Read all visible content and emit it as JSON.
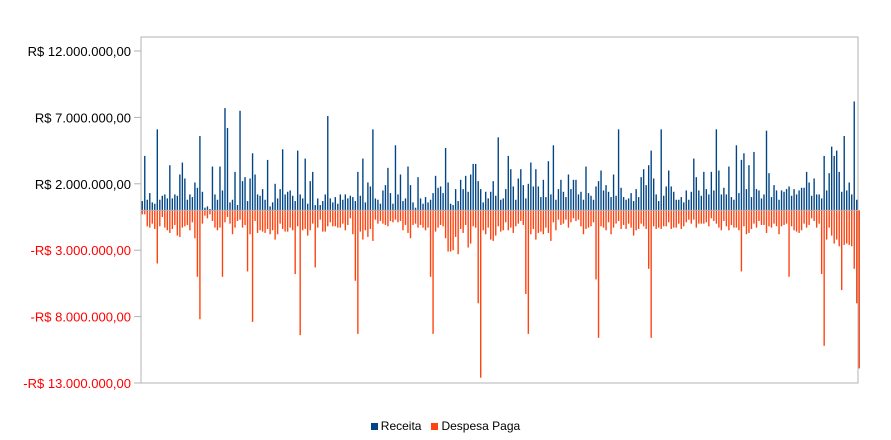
{
  "chart_data": {
    "type": "bar",
    "title": "",
    "xlabel": "",
    "ylabel": "",
    "ylim": [
      -13000000,
      12600000
    ],
    "y_ticks": [
      {
        "value": 12000000,
        "label": "R$ 12.000.000,00"
      },
      {
        "value": 7000000,
        "label": "R$ 7.000.000,00"
      },
      {
        "value": 2000000,
        "label": "R$ 2.000.000,00"
      },
      {
        "value": -3000000,
        "label": "-R$ 3.000.000,00"
      },
      {
        "value": -8000000,
        "label": "-R$ 8.000.000,00"
      },
      {
        "value": -13000000,
        "label": "-R$ 13.000.000,00"
      }
    ],
    "colors": {
      "receita": "#004586",
      "despesa": "#ff420e",
      "positive_label": "#000000",
      "negative_label": "#ff0000"
    },
    "legend_position": "bottom",
    "series": [
      {
        "name": "Receita",
        "values": [
          700000,
          4100000,
          800000,
          1300000,
          600000,
          500000,
          6100000,
          800000,
          1100000,
          1200000,
          900000,
          3400000,
          900000,
          1200000,
          1100000,
          2700000,
          3600000,
          2400000,
          800000,
          1200000,
          1000000,
          2100000,
          1700000,
          5600000,
          1400000,
          200000,
          300000,
          100000,
          3300000,
          1200000,
          800000,
          3300000,
          1500000,
          7700000,
          6200000,
          600000,
          800000,
          2900000,
          400000,
          7500000,
          2200000,
          2500000,
          700000,
          2400000,
          4300000,
          2700000,
          1200000,
          1100000,
          1600000,
          800000,
          3800000,
          300000,
          600000,
          2000000,
          900000,
          1600000,
          4600000,
          1200000,
          1400000,
          1500000,
          1100000,
          700000,
          4500000,
          1200000,
          900000,
          3900000,
          500000,
          2200000,
          2900000,
          400000,
          900000,
          400000,
          700000,
          1200000,
          7100000,
          900000,
          600000,
          1000000,
          500000,
          1200000,
          800000,
          1200000,
          900000,
          1100000,
          1000000,
          700000,
          2900000,
          1100000,
          3900000,
          600000,
          2100000,
          1800000,
          6100000,
          900000,
          800000,
          500000,
          1500000,
          1900000,
          3200000,
          1300000,
          500000,
          4900000,
          1200000,
          2700000,
          700000,
          900000,
          3300000,
          1900000,
          600000,
          200000,
          2500000,
          900000,
          500000,
          1000000,
          600000,
          800000,
          1300000,
          2600000,
          1700000,
          1800000,
          1300000,
          4700000,
          2100000,
          500000,
          400000,
          1600000,
          700000,
          2300000,
          1600000,
          2600000,
          1400000,
          2700000,
          3500000,
          3500000,
          2200000,
          1600000,
          600000,
          1400000,
          900000,
          1400000,
          2200000,
          1100000,
          5500000,
          800000,
          900000,
          1600000,
          4100000,
          3100000,
          1800000,
          800000,
          2400000,
          3100000,
          1900000,
          900000,
          2000000,
          3600000,
          1800000,
          3100000,
          1800000,
          1000000,
          2300000,
          1000000,
          3700000,
          1200000,
          4900000,
          800000,
          1600000,
          2300000,
          1400000,
          1000000,
          2700000,
          1600000,
          2300000,
          2300000,
          1200000,
          1400000,
          800000,
          3300000,
          1300000,
          1100000,
          800000,
          1800000,
          2200000,
          3000000,
          1500000,
          1900000,
          1400000,
          1000000,
          2700000,
          1100000,
          6100000,
          1700000,
          1000000,
          800000,
          900000,
          1300000,
          700000,
          1600000,
          1000000,
          2500000,
          3100000,
          1900000,
          3400000,
          4500000,
          2400000,
          1200000,
          700000,
          6100000,
          1100000,
          1800000,
          3000000,
          1800000,
          1400000,
          800000,
          800000,
          1000000,
          600000,
          1500000,
          800000,
          1400000,
          3900000,
          2500000,
          1500000,
          1100000,
          2900000,
          1600000,
          1200000,
          2900000,
          1500000,
          6100000,
          3000000,
          1200000,
          1700000,
          1200000,
          3300000,
          1000000,
          800000,
          4900000,
          1300000,
          3800000,
          4300000,
          1600000,
          3400000,
          1000000,
          4400000,
          1600000,
          1500000,
          900000,
          1200000,
          6000000,
          2800000,
          1000000,
          1900000,
          1500000,
          800000,
          1500000,
          1400000,
          1600000,
          1800000,
          1100000,
          1600000,
          1200000,
          1500000,
          1700000,
          1700000,
          2900000,
          2100000,
          1100000,
          2400000,
          1200000,
          1200000,
          900000,
          4100000,
          1500000,
          2800000,
          4800000,
          4100000,
          4500000,
          2900000,
          1400000,
          5600000,
          1500000,
          2100000,
          1200000,
          8200000,
          800000
        ]
      },
      {
        "name": "Despesa Paga",
        "values": [
          -300000,
          -300000,
          -1200000,
          -1300000,
          -1000000,
          -1400000,
          -4000000,
          -1200000,
          -500000,
          -1300000,
          -1500000,
          -1700000,
          -1400000,
          -1100000,
          -1900000,
          -2000000,
          -1300000,
          -1200000,
          -1100000,
          -1500000,
          -900000,
          -2100000,
          -5000000,
          -8200000,
          -1000000,
          -400000,
          -600000,
          -300000,
          -800000,
          -1300000,
          -1500000,
          -1300000,
          -5000000,
          -900000,
          -500000,
          -1000000,
          -1800000,
          -1300000,
          -800000,
          -700000,
          -1300000,
          -1100000,
          -4600000,
          -1800000,
          -8400000,
          -800000,
          -1700000,
          -1500000,
          -1600000,
          -1700000,
          -1400000,
          -1800000,
          -1500000,
          -2200000,
          -1800000,
          -1000000,
          -1400000,
          -1600000,
          -1600000,
          -1300000,
          -1500000,
          -4800000,
          -1200000,
          -9400000,
          -1500000,
          -1400000,
          -1900000,
          -1500000,
          -1000000,
          -4300000,
          -1300000,
          -700000,
          -1600000,
          -1600000,
          -1200000,
          -900000,
          -1200000,
          -1200000,
          -1300000,
          -1300000,
          -1000000,
          -1500000,
          -1100000,
          -600000,
          -1800000,
          -5300000,
          -9300000,
          -1600000,
          -2200000,
          -1500000,
          -2000000,
          -1400000,
          -2300000,
          -700000,
          -1000000,
          -800000,
          -1000000,
          -1100000,
          -1200000,
          -800000,
          -900000,
          -700000,
          -900000,
          -800000,
          -1500000,
          -1100000,
          -1700000,
          -2100000,
          -1100000,
          -1000000,
          -1300000,
          -1100000,
          -1300000,
          -1500000,
          -1300000,
          -5000000,
          -9300000,
          -1600000,
          -1300000,
          -1100000,
          -1200000,
          -2100000,
          -3100000,
          -3100000,
          -3000000,
          -2000000,
          -3300000,
          -1400000,
          -1700000,
          -1100000,
          -2800000,
          -2500000,
          -1200000,
          -1300000,
          -7000000,
          -12600000,
          -1500000,
          -1800000,
          -1300000,
          -2200000,
          -2300000,
          -1900000,
          -1200000,
          -1600000,
          -1500000,
          -900000,
          -1500000,
          -1300000,
          -1700000,
          -1200000,
          -1000000,
          -800000,
          -1100000,
          -6300000,
          -9300000,
          -1800000,
          -1400000,
          -2200000,
          -1700000,
          -1600000,
          -1800000,
          -1300000,
          -1700000,
          -2300000,
          -900000,
          -1500000,
          -700000,
          -1100000,
          -1000000,
          -700000,
          -1300000,
          -900000,
          -600000,
          -800000,
          -700000,
          -1200000,
          -1800000,
          -1400000,
          -1300000,
          -1200000,
          -900000,
          -5200000,
          -9600000,
          -1200000,
          -1300000,
          -1500000,
          -900000,
          -1800000,
          -1300000,
          -1000000,
          -800000,
          -1400000,
          -1100000,
          -1400000,
          -1000000,
          -1300000,
          -1900000,
          -1500000,
          -1400000,
          -1000000,
          -1200000,
          -1400000,
          -4400000,
          -9600000,
          -1200000,
          -1400000,
          -1300000,
          -1400000,
          -1200000,
          -1200000,
          -900000,
          -1400000,
          -1300000,
          -1300000,
          -1000000,
          -1400000,
          -1200000,
          -900000,
          -700000,
          -1000000,
          -700000,
          -1300000,
          -1000000,
          -1000000,
          -1000000,
          -900000,
          -1200000,
          -600000,
          -800000,
          -1000000,
          -1300000,
          -1500000,
          -800000,
          -1200000,
          -1500000,
          -1100000,
          -1300000,
          -1300000,
          -1500000,
          -4600000,
          -1200000,
          -1800000,
          -1700000,
          -1400000,
          -1000000,
          -1300000,
          -800000,
          -1100000,
          -1100000,
          -1700000,
          -1200000,
          -1300000,
          -1000000,
          -1200000,
          -1800000,
          -1200000,
          -1100000,
          -1000000,
          -5000000,
          -1200000,
          -1500000,
          -1600000,
          -1700000,
          -1500000,
          -1000000,
          -1300000,
          -1100000,
          -600000,
          -800000,
          -1300000,
          -1000000,
          -4800000,
          -10200000,
          -2200000,
          -1300000,
          -1900000,
          -2500000,
          -2200000,
          -2700000,
          -6000000,
          -2600000,
          -2500000,
          -2600000,
          -2700000,
          -4400000,
          -7000000,
          -11900000
        ]
      }
    ]
  }
}
